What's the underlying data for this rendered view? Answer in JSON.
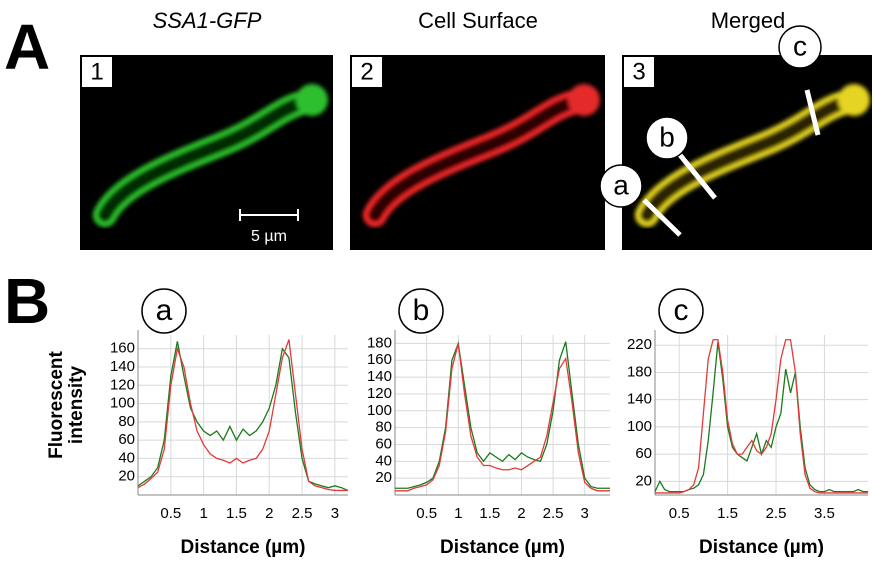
{
  "figure": {
    "panel_a_label": "A",
    "panel_b_label": "B",
    "images": [
      {
        "number": "1",
        "title": "SSA1-GFP"
      },
      {
        "number": "2",
        "title": "Cell Surface"
      },
      {
        "number": "3",
        "title": "Merged",
        "markers": [
          "a",
          "b",
          "c"
        ]
      }
    ],
    "scale_bar": "5 µm"
  },
  "chart_data": [
    {
      "type": "line",
      "title": "a",
      "xlabel": "Distance (µm)",
      "ylabel": "Fluorescent intensity",
      "grid": true,
      "x": [
        0,
        0.1,
        0.2,
        0.3,
        0.4,
        0.5,
        0.6,
        0.7,
        0.8,
        0.9,
        1,
        1.1,
        1.2,
        1.3,
        1.4,
        1.5,
        1.6,
        1.7,
        1.8,
        1.9,
        2,
        2.1,
        2.2,
        2.3,
        2.4,
        2.5,
        2.6,
        2.7,
        2.8,
        2.9,
        3,
        3.1,
        3.2
      ],
      "series": [
        {
          "color": "#1b7a1b",
          "values": [
            10,
            15,
            20,
            30,
            60,
            130,
            168,
            130,
            95,
            80,
            70,
            65,
            70,
            60,
            75,
            60,
            72,
            65,
            70,
            80,
            95,
            120,
            160,
            150,
            90,
            40,
            15,
            12,
            10,
            8,
            10,
            8,
            5
          ]
        },
        {
          "color": "#e23a3a",
          "values": [
            8,
            12,
            18,
            25,
            50,
            120,
            160,
            140,
            100,
            70,
            55,
            45,
            40,
            38,
            35,
            40,
            35,
            38,
            40,
            50,
            70,
            110,
            150,
            170,
            110,
            50,
            15,
            10,
            8,
            6,
            5,
            5,
            5
          ]
        }
      ],
      "xlim": [
        0,
        3.2
      ],
      "xticks": [
        0.5,
        1,
        1.5,
        2,
        2.5,
        3
      ],
      "ylim": [
        0,
        175
      ],
      "yticks": [
        20,
        40,
        60,
        80,
        100,
        120,
        140,
        160
      ]
    },
    {
      "type": "line",
      "title": "b",
      "xlabel": "Distance (µm)",
      "grid": true,
      "x": [
        0,
        0.1,
        0.2,
        0.3,
        0.4,
        0.5,
        0.6,
        0.7,
        0.8,
        0.9,
        1,
        1.1,
        1.2,
        1.3,
        1.4,
        1.5,
        1.6,
        1.7,
        1.8,
        1.9,
        2,
        2.1,
        2.2,
        2.3,
        2.4,
        2.5,
        2.6,
        2.7,
        2.8,
        2.9,
        3,
        3.1,
        3.2,
        3.3,
        3.4
      ],
      "series": [
        {
          "color": "#1b7a1b",
          "values": [
            8,
            8,
            8,
            10,
            12,
            15,
            20,
            40,
            80,
            160,
            180,
            130,
            80,
            50,
            40,
            50,
            45,
            40,
            48,
            42,
            50,
            45,
            42,
            40,
            60,
            100,
            160,
            182,
            120,
            60,
            20,
            10,
            8,
            8,
            8
          ]
        },
        {
          "color": "#e23a3a",
          "values": [
            5,
            5,
            5,
            8,
            10,
            12,
            18,
            35,
            75,
            150,
            180,
            120,
            70,
            45,
            35,
            35,
            32,
            30,
            30,
            32,
            30,
            35,
            40,
            45,
            70,
            110,
            150,
            162,
            110,
            50,
            15,
            8,
            5,
            5,
            5
          ]
        }
      ],
      "xlim": [
        0,
        3.4
      ],
      "xticks": [
        0.5,
        1,
        1.5,
        2,
        2.5,
        3
      ],
      "ylim": [
        0,
        190
      ],
      "yticks": [
        20,
        40,
        60,
        80,
        100,
        120,
        140,
        160,
        180
      ]
    },
    {
      "type": "line",
      "title": "c",
      "xlabel": "Distance (µm)",
      "grid": true,
      "x": [
        0,
        0.1,
        0.2,
        0.3,
        0.4,
        0.5,
        0.6,
        0.7,
        0.8,
        0.9,
        1,
        1.1,
        1.2,
        1.3,
        1.4,
        1.5,
        1.6,
        1.7,
        1.8,
        1.9,
        2,
        2.1,
        2.2,
        2.3,
        2.4,
        2.5,
        2.6,
        2.7,
        2.8,
        2.9,
        3,
        3.1,
        3.2,
        3.3,
        3.4,
        3.5,
        3.6,
        3.7,
        3.8,
        3.9,
        4,
        4.1,
        4.2,
        4.3,
        4.4
      ],
      "series": [
        {
          "color": "#1b7a1b",
          "values": [
            5,
            20,
            8,
            5,
            5,
            5,
            5,
            8,
            10,
            15,
            30,
            80,
            150,
            225,
            170,
            100,
            70,
            60,
            55,
            50,
            70,
            90,
            60,
            80,
            70,
            100,
            120,
            185,
            150,
            180,
            100,
            40,
            15,
            8,
            5,
            5,
            8,
            5,
            5,
            5,
            5,
            5,
            8,
            5,
            5
          ]
        },
        {
          "color": "#e23a3a",
          "values": [
            3,
            3,
            3,
            3,
            3,
            3,
            5,
            8,
            15,
            40,
            120,
            200,
            228,
            228,
            180,
            110,
            75,
            60,
            60,
            70,
            80,
            65,
            60,
            70,
            90,
            140,
            200,
            228,
            228,
            180,
            90,
            30,
            10,
            5,
            3,
            3,
            3,
            3,
            3,
            3,
            3,
            3,
            3,
            3,
            3
          ]
        }
      ],
      "xlim": [
        0,
        4.4
      ],
      "xticks": [
        0.5,
        1.5,
        2.5,
        3.5
      ],
      "ylim": [
        0,
        235
      ],
      "yticks": [
        20,
        60,
        100,
        140,
        180,
        220
      ]
    }
  ]
}
